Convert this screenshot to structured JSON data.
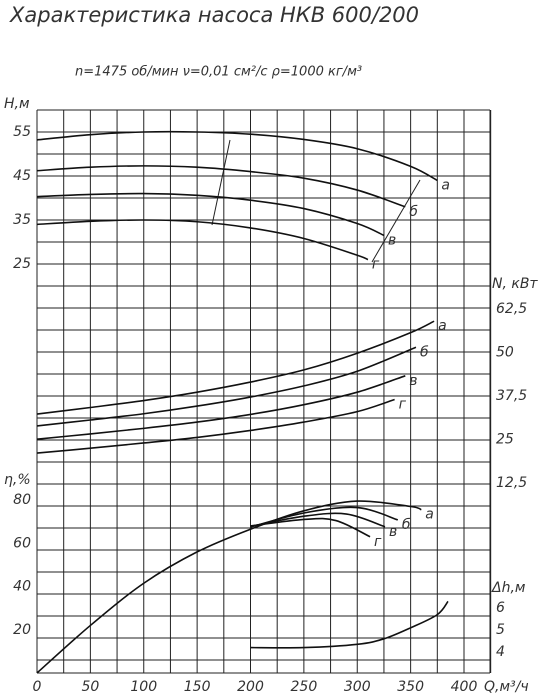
{
  "header": {
    "title": "Характеристика насоса НКВ 600/200",
    "subtitle": "n=1475 об/мин   ν=0,01 см²/с   ρ=1000 кг/м³"
  },
  "x_axis": {
    "label": "Q,м³/ч",
    "xlim": [
      0,
      400
    ],
    "xticks": [
      0,
      50,
      100,
      150,
      200,
      250,
      300,
      350,
      400
    ]
  },
  "chart_data": [
    {
      "type": "line",
      "y_label": "H,м",
      "ylim": [
        20,
        60
      ],
      "yticks": [
        25,
        35,
        45,
        55
      ],
      "color": "#111111",
      "series": [
        {
          "name": "а",
          "x": [
            0,
            50,
            100,
            150,
            200,
            250,
            300,
            350,
            375
          ],
          "values": [
            53.2,
            54.4,
            55,
            55,
            54.5,
            53.3,
            51.2,
            47.2,
            44
          ]
        },
        {
          "name": "б",
          "x": [
            0,
            50,
            100,
            150,
            200,
            250,
            300,
            345
          ],
          "values": [
            46.2,
            47,
            47.3,
            47,
            46,
            44.5,
            41.8,
            38
          ]
        },
        {
          "name": "в",
          "x": [
            0,
            50,
            100,
            150,
            200,
            250,
            300,
            325
          ],
          "values": [
            40.3,
            40.8,
            41,
            40.6,
            39.5,
            37.6,
            34.2,
            31.5
          ]
        },
        {
          "name": "г",
          "x": [
            0,
            50,
            100,
            150,
            200,
            250,
            300,
            310
          ],
          "values": [
            34,
            34.7,
            35,
            34.6,
            33.2,
            30.8,
            27,
            26
          ]
        }
      ]
    },
    {
      "type": "line",
      "y_label": "N, кВт",
      "ylim": [
        12.5,
        62.5
      ],
      "color": "#111111",
      "yticks": [
        {
          "value": 12.5,
          "label": "12,5"
        },
        25,
        {
          "value": 37.5,
          "label": "37,5"
        },
        50,
        {
          "value": 62.5,
          "label": "62,5"
        }
      ],
      "series": [
        {
          "name": "а",
          "x": [
            0,
            50,
            100,
            150,
            200,
            250,
            300,
            350,
            372
          ],
          "values": [
            32.3,
            34.2,
            36.2,
            38.6,
            41.5,
            45,
            49.8,
            55.7,
            59
          ]
        },
        {
          "name": "б",
          "x": [
            0,
            50,
            100,
            150,
            200,
            250,
            300,
            355
          ],
          "values": [
            28.9,
            30.6,
            32.4,
            34.6,
            37.2,
            40.4,
            44.6,
            51.5
          ]
        },
        {
          "name": "в",
          "x": [
            0,
            50,
            100,
            150,
            200,
            250,
            300,
            345
          ],
          "values": [
            25.1,
            26.6,
            28.2,
            30,
            32.2,
            35,
            38.6,
            43.3
          ]
        },
        {
          "name": "г",
          "x": [
            0,
            50,
            100,
            150,
            200,
            250,
            300,
            335
          ],
          "values": [
            21.1,
            22.5,
            24,
            25.6,
            27.6,
            30,
            33,
            36.5
          ]
        }
      ]
    },
    {
      "type": "line",
      "y_label": "η,%",
      "ylim": [
        0,
        80
      ],
      "yticks": [
        20,
        40,
        60,
        80
      ],
      "color": "#111111",
      "series": [
        {
          "name": "а",
          "x": [
            0,
            50,
            100,
            150,
            200,
            250,
            300,
            350,
            360
          ],
          "values": [
            0,
            22,
            41.5,
            56,
            66.5,
            75,
            79.5,
            77,
            75.5
          ]
        },
        {
          "name": "б",
          "x": [
            200,
            250,
            300,
            338
          ],
          "values": [
            67.5,
            74,
            76.5,
            70.8
          ]
        },
        {
          "name": "в",
          "x": [
            200,
            250,
            290,
            326
          ],
          "values": [
            67.8,
            72.5,
            73.5,
            67.6
          ]
        },
        {
          "name": "г",
          "x": [
            200,
            250,
            280,
            312
          ],
          "values": [
            68,
            71,
            70.5,
            63
          ]
        }
      ]
    },
    {
      "type": "line",
      "y_label": "Δh,м",
      "ylim": [
        4,
        6
      ],
      "yticks": [
        4,
        5,
        6
      ],
      "color": "#111111",
      "series": [
        {
          "x": [
            200,
            250,
            300,
            325,
            350,
            375,
            385
          ],
          "values": [
            4.2,
            4.2,
            4.35,
            4.6,
            5.1,
            5.7,
            6.3
          ]
        }
      ]
    }
  ]
}
